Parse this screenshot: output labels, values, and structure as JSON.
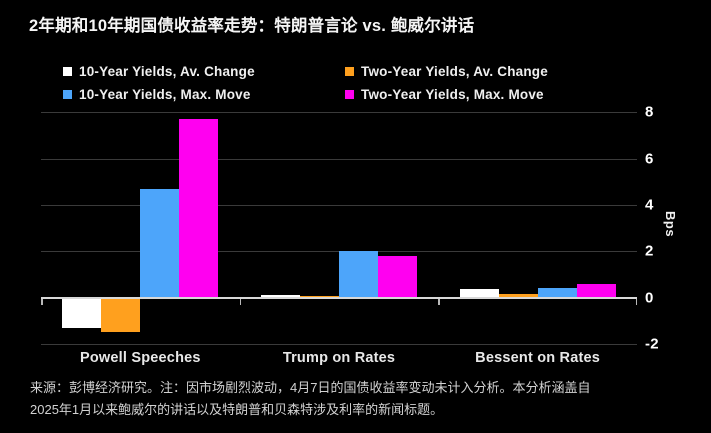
{
  "title": "2年期和10年期国债收益率走势：特朗普言论 vs. 鲍威尔讲话",
  "legend": {
    "items": [
      {
        "label": "10-Year Yields, Av. Change",
        "color": "#ffffff"
      },
      {
        "label": "Two-Year Yields, Av. Change",
        "color": "#ffa01e"
      },
      {
        "label": "10-Year Yields, Max. Move",
        "color": "#4da5fa"
      },
      {
        "label": "Two-Year Yields, Max. Move",
        "color": "#ff00f0"
      }
    ]
  },
  "chart_data": {
    "type": "bar",
    "categories": [
      "Powell Speeches",
      "Trump on Rates",
      "Bessent on Rates"
    ],
    "series": [
      {
        "name": "10-Year Yields, Av. Change",
        "color": "#ffffff",
        "values": [
          -1.3,
          0.1,
          0.35
        ]
      },
      {
        "name": "Two-Year Yields, Av. Change",
        "color": "#ffa01e",
        "values": [
          -1.5,
          0.05,
          0.15
        ]
      },
      {
        "name": "10-Year Yields, Max. Move",
        "color": "#4da5fa",
        "values": [
          4.7,
          2.0,
          0.4
        ]
      },
      {
        "name": "Two-Year Yields, Max. Move",
        "color": "#ff00f0",
        "values": [
          7.7,
          1.8,
          0.6
        ]
      }
    ],
    "ylabel": "Bps",
    "ylim": [
      -2,
      8
    ],
    "yticks": [
      8,
      6,
      4,
      2,
      0,
      -2
    ],
    "grid": "horizontal",
    "legend_position": "top",
    "background": "#000000",
    "zero_line_color": "#d8d8d8",
    "gridline_color": "#3a3a3a"
  },
  "source_note": {
    "lines": [
      "来源：彭博经济研究。注：因市场剧烈波动，4月7日的国债收益率变动未计入分析。本分析涵盖自",
      "2025年1月以来鲍威尔的讲话以及特朗普和贝森特涉及利率的新闻标题。"
    ]
  }
}
